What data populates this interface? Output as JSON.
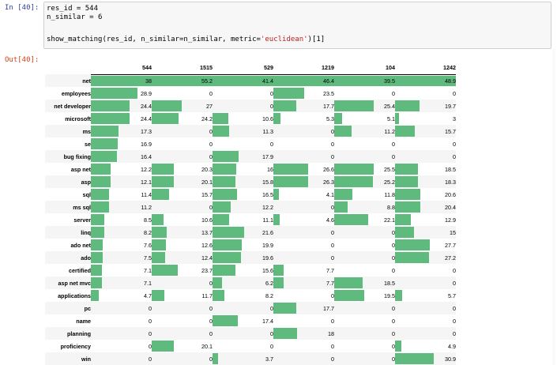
{
  "input_prompt": "In [40]:",
  "output_prompt": "Out[40]:",
  "code": {
    "line1": "res_id = 544",
    "line2": "n_similar = 6",
    "line3_pre": "show_matching(res_id, n_similar=n_similar, metric=",
    "line3_str": "'euclidean'",
    "line3_post": ")[1]"
  },
  "bar_color": "#5fba7d",
  "table": {
    "columns": [
      "544",
      "1515",
      "529",
      "1219",
      "104",
      "1242"
    ],
    "max": [
      38,
      55.2,
      41.4,
      46.4,
      39.5,
      48.9
    ],
    "rows": [
      {
        "label": "net",
        "values": [
          "38",
          "55.2",
          "41.4",
          "46.4",
          "39.5",
          "48.9"
        ]
      },
      {
        "label": "employees",
        "values": [
          "28.9",
          "0",
          "0",
          "23.5",
          "0",
          "0"
        ]
      },
      {
        "label": "net developer",
        "values": [
          "24.4",
          "27",
          "0",
          "17.7",
          "25.4",
          "19.7"
        ]
      },
      {
        "label": "microsoft",
        "values": [
          "24.4",
          "24.2",
          "10.6",
          "5.3",
          "5.1",
          "3"
        ]
      },
      {
        "label": "ms",
        "values": [
          "17.3",
          "0",
          "11.3",
          "0",
          "11.2",
          "15.7"
        ]
      },
      {
        "label": "se",
        "values": [
          "16.9",
          "0",
          "0",
          "0",
          "0",
          "0"
        ]
      },
      {
        "label": "bug fixing",
        "values": [
          "16.4",
          "0",
          "17.9",
          "0",
          "0",
          "0"
        ]
      },
      {
        "label": "asp net",
        "values": [
          "12.2",
          "20.3",
          "16",
          "26.6",
          "25.5",
          "18.5"
        ]
      },
      {
        "label": "asp",
        "values": [
          "12.1",
          "20.1",
          "15.8",
          "26.3",
          "25.2",
          "18.3"
        ]
      },
      {
        "label": "sql",
        "values": [
          "11.4",
          "15.7",
          "16.5",
          "4.1",
          "11.8",
          "20.6"
        ]
      },
      {
        "label": "ms sql",
        "values": [
          "11.2",
          "0",
          "12.2",
          "0",
          "8.8",
          "20.4"
        ]
      },
      {
        "label": "server",
        "values": [
          "8.5",
          "10.6",
          "11.1",
          "4.6",
          "22.1",
          "12.9"
        ]
      },
      {
        "label": "linq",
        "values": [
          "8.2",
          "13.7",
          "21.6",
          "0",
          "0",
          "15"
        ]
      },
      {
        "label": "ado net",
        "values": [
          "7.6",
          "12.6",
          "19.9",
          "0",
          "0",
          "27.7"
        ]
      },
      {
        "label": "ado",
        "values": [
          "7.5",
          "12.4",
          "19.6",
          "0",
          "0",
          "27.2"
        ]
      },
      {
        "label": "certified",
        "values": [
          "7.1",
          "23.7",
          "15.6",
          "7.7",
          "0",
          "0"
        ]
      },
      {
        "label": "asp net mvc",
        "values": [
          "7.1",
          "0",
          "6.2",
          "7.7",
          "18.5",
          "0"
        ]
      },
      {
        "label": "applications",
        "values": [
          "4.7",
          "11.7",
          "8.2",
          "0",
          "19.5",
          "5.7"
        ]
      },
      {
        "label": "pc",
        "values": [
          "0",
          "0",
          "0",
          "17.7",
          "0",
          "0"
        ]
      },
      {
        "label": "name",
        "values": [
          "0",
          "0",
          "17.4",
          "0",
          "0",
          "0"
        ]
      },
      {
        "label": "planning",
        "values": [
          "0",
          "0",
          "0",
          "18",
          "0",
          "0"
        ]
      },
      {
        "label": "proficiency",
        "values": [
          "0",
          "20.1",
          "0",
          "0",
          "0",
          "4.9"
        ]
      },
      {
        "label": "win",
        "values": [
          "0",
          "0",
          "3.7",
          "0",
          "0",
          "30.9"
        ]
      }
    ]
  }
}
